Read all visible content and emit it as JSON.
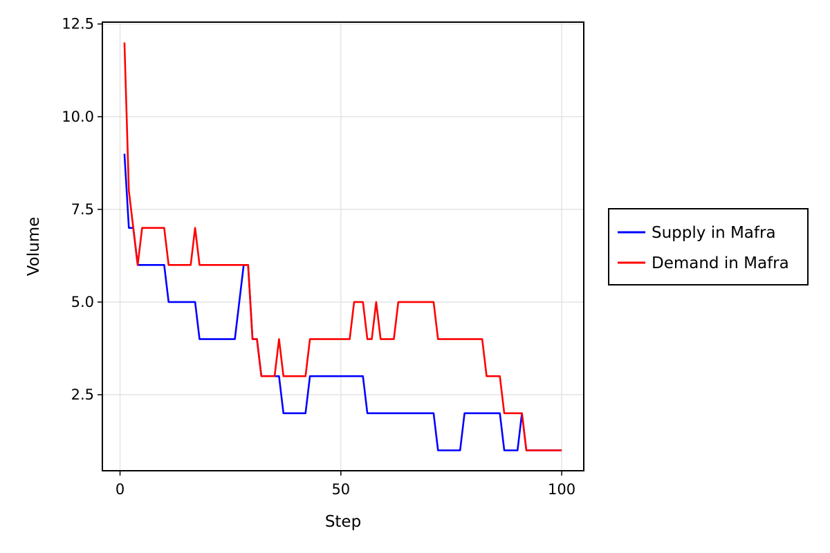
{
  "chart_data": {
    "type": "line",
    "title": "",
    "xlabel": "Step",
    "ylabel": "Volume",
    "xlim": [
      -4,
      105
    ],
    "ylim": [
      0.45,
      12.55
    ],
    "x_ticks": [
      0,
      50,
      100
    ],
    "x_tick_labels": [
      "0",
      "50",
      "100"
    ],
    "y_ticks": [
      2.5,
      5.0,
      7.5,
      10.0,
      12.5
    ],
    "y_tick_labels": [
      "2.5",
      "5.0",
      "7.5",
      "10.0",
      "12.5"
    ],
    "grid": true,
    "legend": {
      "position": "right-outside"
    },
    "x": [
      1,
      2,
      3,
      4,
      5,
      6,
      7,
      8,
      9,
      10,
      11,
      12,
      13,
      14,
      15,
      16,
      17,
      18,
      19,
      20,
      21,
      22,
      23,
      24,
      25,
      26,
      27,
      28,
      29,
      30,
      31,
      32,
      33,
      34,
      35,
      36,
      37,
      38,
      39,
      40,
      41,
      42,
      43,
      44,
      45,
      46,
      47,
      48,
      49,
      50,
      51,
      52,
      53,
      54,
      55,
      56,
      57,
      58,
      59,
      60,
      61,
      62,
      63,
      64,
      65,
      66,
      67,
      68,
      69,
      70,
      71,
      72,
      73,
      74,
      75,
      76,
      77,
      78,
      79,
      80,
      81,
      82,
      83,
      84,
      85,
      86,
      87,
      88,
      89,
      90,
      91,
      92,
      93,
      94,
      95,
      96,
      97,
      98,
      99,
      100
    ],
    "series": [
      {
        "name": "Supply in Mafra",
        "color": "#0000ff",
        "values": [
          9,
          7,
          7,
          6,
          6,
          6,
          6,
          6,
          6,
          6,
          5,
          5,
          5,
          5,
          5,
          5,
          5,
          4,
          4,
          4,
          4,
          4,
          4,
          4,
          4,
          4,
          5,
          6,
          6,
          4,
          4,
          3,
          3,
          3,
          3,
          3,
          2,
          2,
          2,
          2,
          2,
          2,
          3,
          3,
          3,
          3,
          3,
          3,
          3,
          3,
          3,
          3,
          3,
          3,
          3,
          2,
          2,
          2,
          2,
          2,
          2,
          2,
          2,
          2,
          2,
          2,
          2,
          2,
          2,
          2,
          2,
          1,
          1,
          1,
          1,
          1,
          1,
          2,
          2,
          2,
          2,
          2,
          2,
          2,
          2,
          2,
          1,
          1,
          1,
          1,
          2,
          1,
          1,
          1,
          1,
          1,
          1,
          1,
          1,
          1
        ]
      },
      {
        "name": "Demand in Mafra",
        "color": "#ff0000",
        "values": [
          12,
          8,
          7,
          6,
          7,
          7,
          7,
          7,
          7,
          7,
          6,
          6,
          6,
          6,
          6,
          6,
          7,
          6,
          6,
          6,
          6,
          6,
          6,
          6,
          6,
          6,
          6,
          6,
          6,
          4,
          4,
          3,
          3,
          3,
          3,
          4,
          3,
          3,
          3,
          3,
          3,
          3,
          4,
          4,
          4,
          4,
          4,
          4,
          4,
          4,
          4,
          4,
          5,
          5,
          5,
          4,
          4,
          5,
          4,
          4,
          4,
          4,
          5,
          5,
          5,
          5,
          5,
          5,
          5,
          5,
          5,
          4,
          4,
          4,
          4,
          4,
          4,
          4,
          4,
          4,
          4,
          4,
          3,
          3,
          3,
          3,
          2,
          2,
          2,
          2,
          2,
          1,
          1,
          1,
          1,
          1,
          1,
          1,
          1,
          1
        ]
      }
    ]
  }
}
